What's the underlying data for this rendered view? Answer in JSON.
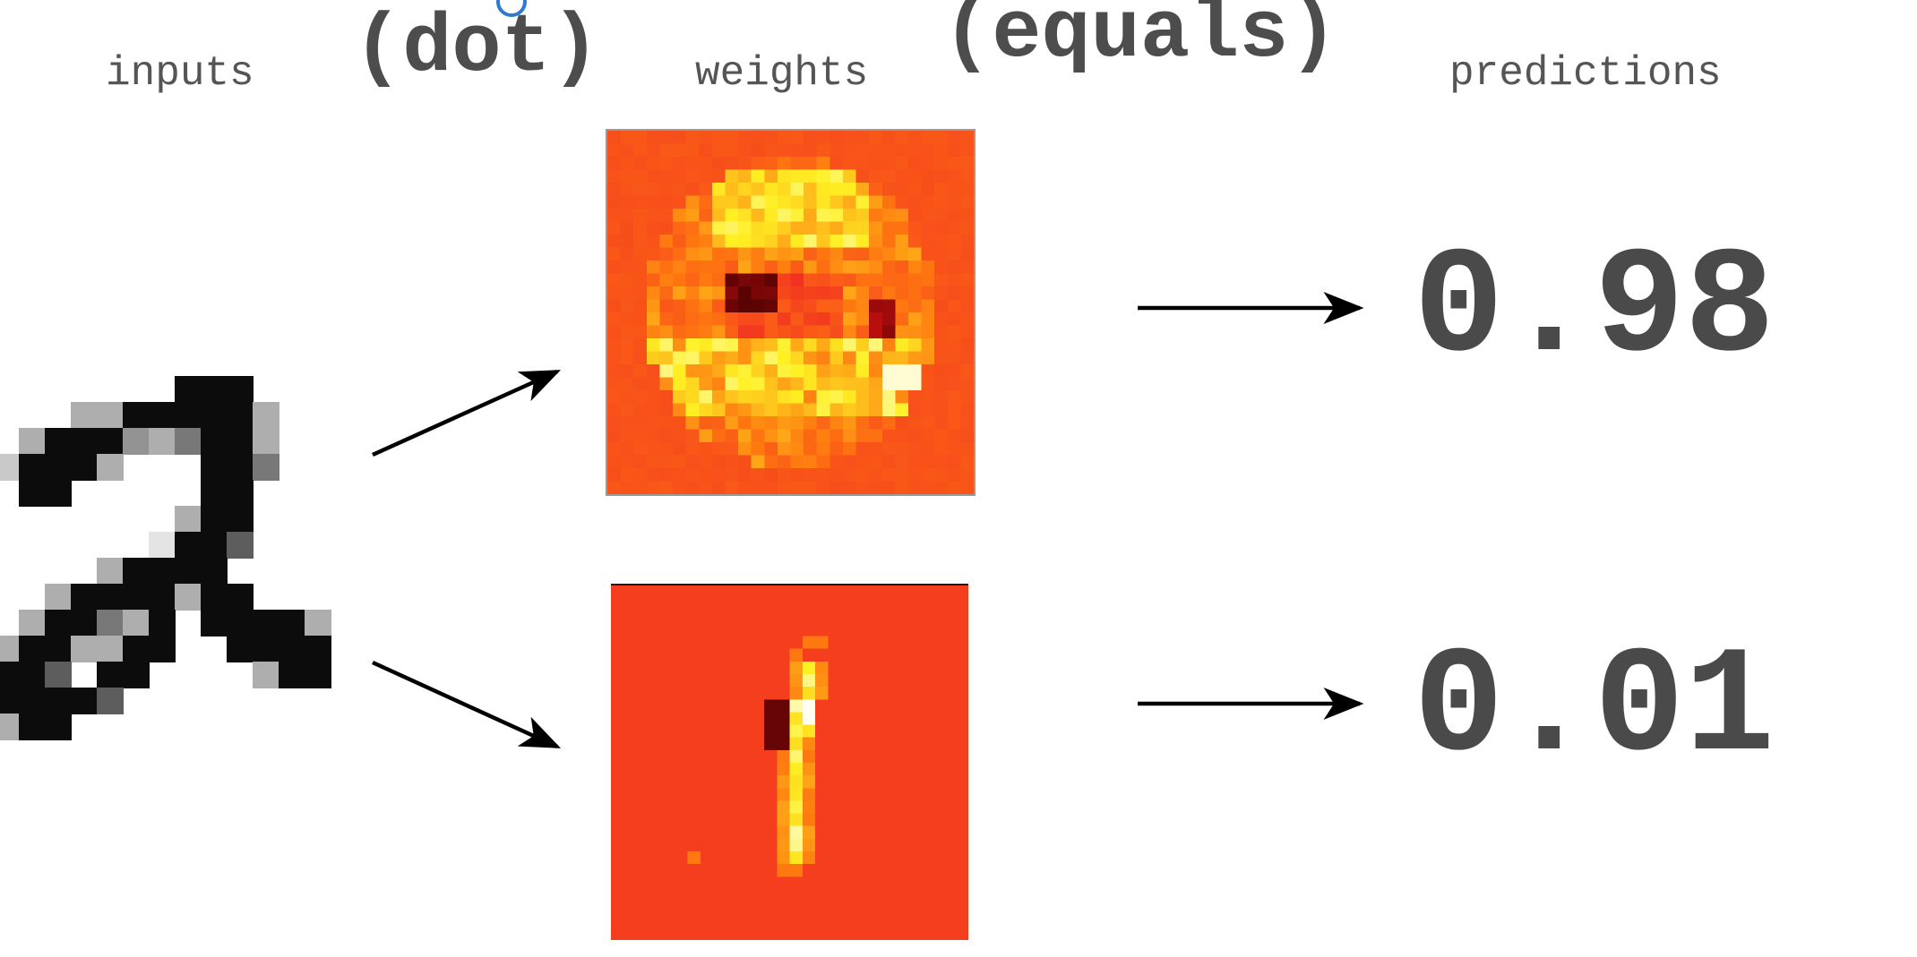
{
  "header": {
    "inputs_label": "inputs",
    "dot_label": "(dot)",
    "weights_label": "weights",
    "equals_label": "(equals)",
    "predictions_label": "predictions"
  },
  "predictions": [
    {
      "value": "0.98"
    },
    {
      "value": "0.01"
    }
  ],
  "colors": {
    "label_text": "#555555",
    "operator_text": "#4d4d4d",
    "prediction_text": "#4a4a4a",
    "arrow": "#000000",
    "weight_map_low": "#000000",
    "weight_map_mid": "#ee2a24",
    "weight_map_high": "#ffffff",
    "cursor_ring": "#2f7ad1"
  },
  "images": {
    "input_digit": "handwritten-digit-2",
    "weight_map_top": "weight-heatmap-digit-2",
    "weight_map_bottom": "weight-heatmap-digit-1"
  }
}
